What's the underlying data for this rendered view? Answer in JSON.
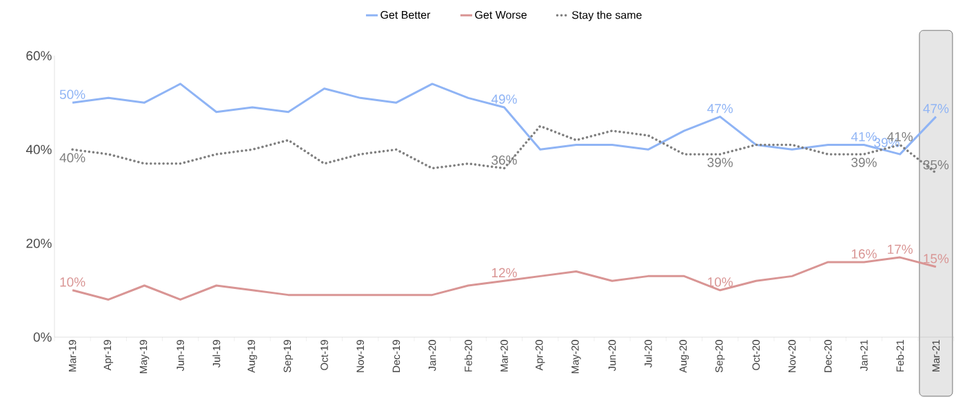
{
  "chart_data": {
    "type": "line",
    "legend": "top",
    "marker": "none",
    "ylim": [
      0,
      60
    ],
    "yticks": [
      {
        "value": 0,
        "label": "0%"
      },
      {
        "value": 20,
        "label": "20%"
      },
      {
        "value": 40,
        "label": "40%"
      },
      {
        "value": 60,
        "label": "60%"
      }
    ],
    "categories": [
      "Mar-19",
      "Apr-19",
      "May-19",
      "Jun-19",
      "Jul-19",
      "Aug-19",
      "Sep-19",
      "Oct-19",
      "Nov-19",
      "Dec-19",
      "Jan-20",
      "Feb-20",
      "Mar-20",
      "Apr-20",
      "May-20",
      "Jun-20",
      "Jul-20",
      "Aug-20",
      "Sep-20",
      "Oct-20",
      "Nov-20",
      "Dec-20",
      "Jan-21",
      "Feb-21",
      "Mar-21"
    ],
    "bands": [
      {
        "axis": "x",
        "from": "Mar-21",
        "to": "Mar-21",
        "color": "#e6e6e6"
      }
    ],
    "series": [
      {
        "name": "Get Better",
        "color": "#8fb4f5",
        "line_style": "solid",
        "values": [
          50,
          51,
          50,
          54,
          48,
          49,
          48,
          53,
          51,
          50,
          54,
          51,
          49,
          40,
          41,
          41,
          40,
          44,
          47,
          41,
          40,
          41,
          41,
          39,
          47
        ],
        "value_labels": [
          "50%",
          null,
          null,
          null,
          null,
          null,
          null,
          null,
          null,
          null,
          null,
          null,
          "49%",
          null,
          null,
          null,
          null,
          null,
          "47%",
          null,
          null,
          null,
          "41%",
          "39%",
          "47%"
        ]
      },
      {
        "name": "Get Worse",
        "color": "#d99594",
        "line_style": "solid",
        "values": [
          10,
          8,
          11,
          8,
          11,
          10,
          9,
          9,
          9,
          9,
          9,
          11,
          12,
          13,
          14,
          12,
          13,
          13,
          10,
          12,
          13,
          16,
          16,
          17,
          15
        ],
        "value_labels": [
          "10%",
          null,
          null,
          null,
          null,
          null,
          null,
          null,
          null,
          null,
          null,
          null,
          "12%",
          null,
          null,
          null,
          null,
          null,
          "10%",
          null,
          null,
          null,
          "16%",
          "17%",
          "15%"
        ]
      },
      {
        "name": "Stay the same",
        "color": "#7f7f7f",
        "line_style": "dotted",
        "values": [
          40,
          39,
          37,
          37,
          39,
          40,
          42,
          37,
          39,
          40,
          36,
          37,
          36,
          45,
          42,
          44,
          43,
          39,
          39,
          41,
          41,
          39,
          39,
          41,
          35
        ],
        "value_labels": [
          "40%",
          null,
          null,
          null,
          null,
          null,
          null,
          null,
          null,
          null,
          null,
          null,
          "36%",
          null,
          null,
          null,
          null,
          null,
          "39%",
          null,
          null,
          null,
          "39%",
          "41%",
          "35%"
        ]
      }
    ]
  }
}
